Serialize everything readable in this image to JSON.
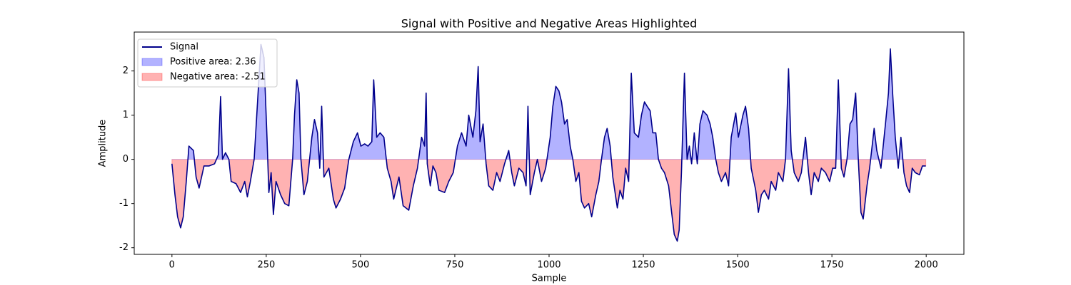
{
  "chart_data": {
    "type": "line",
    "title": "Signal with Positive and Negative Areas Highlighted",
    "x_label": "Sample",
    "y_label": "Amplitude",
    "xlim": [
      -100,
      2100
    ],
    "ylim": [
      -2.15,
      2.88
    ],
    "xticks": [
      0,
      250,
      500,
      750,
      1000,
      1250,
      1500,
      1750,
      2000
    ],
    "yticks": [
      -2,
      -1,
      0,
      1,
      2
    ],
    "legend": "upper left",
    "series": [
      {
        "name": "Signal",
        "color": "#00008b",
        "x": [
          0,
          8,
          15,
          23,
          30,
          38,
          45,
          57,
          64,
          72,
          85,
          98,
          113,
          123,
          129,
          134,
          142,
          151,
          157,
          170,
          182,
          193,
          200,
          208,
          218,
          227,
          236,
          244,
          252,
          257,
          263,
          269,
          276,
          288,
          299,
          310,
          320,
          325,
          331,
          337,
          342,
          350,
          359,
          371,
          378,
          386,
          392,
          397,
          403,
          416,
          428,
          435,
          447,
          458,
          469,
          481,
          492,
          501,
          511,
          520,
          530,
          535,
          543,
          552,
          562,
          571,
          581,
          588,
          602,
          613,
          628,
          640,
          651,
          662,
          670,
          674,
          677,
          685,
          692,
          700,
          708,
          723,
          734,
          746,
          757,
          768,
          780,
          787,
          798,
          806,
          812,
          817,
          825,
          833,
          840,
          851,
          861,
          870,
          882,
          893,
          901,
          908,
          920,
          931,
          939,
          944,
          950,
          961,
          969,
          980,
          991,
          1003,
          1010,
          1018,
          1026,
          1033,
          1041,
          1048,
          1056,
          1063,
          1071,
          1079,
          1086,
          1094,
          1105,
          1113,
          1124,
          1132,
          1139,
          1147,
          1154,
          1162,
          1169,
          1181,
          1188,
          1196,
          1203,
          1211,
          1218,
          1226,
          1237,
          1245,
          1253,
          1260,
          1268,
          1275,
          1283,
          1290,
          1298,
          1306,
          1317,
          1325,
          1332,
          1340,
          1345,
          1351,
          1359,
          1366,
          1372,
          1378,
          1385,
          1393,
          1400,
          1408,
          1419,
          1427,
          1434,
          1442,
          1449,
          1457,
          1468,
          1476,
          1483,
          1495,
          1502,
          1514,
          1521,
          1529,
          1536,
          1548,
          1555,
          1563,
          1571,
          1582,
          1589,
          1601,
          1608,
          1620,
          1627,
          1635,
          1642,
          1650,
          1661,
          1669,
          1680,
          1688,
          1695,
          1703,
          1714,
          1722,
          1733,
          1744,
          1752,
          1760,
          1767,
          1775,
          1782,
          1790,
          1798,
          1805,
          1813,
          1820,
          1827,
          1833,
          1843,
          1850,
          1862,
          1869,
          1880,
          1892,
          1900,
          1905,
          1911,
          1918,
          1926,
          1933,
          1941,
          1948,
          1956,
          1963,
          1971,
          1982,
          1990,
          1999
        ],
        "values": [
          -0.1,
          -0.8,
          -1.3,
          -1.55,
          -1.3,
          -0.5,
          0.3,
          0.2,
          -0.4,
          -0.65,
          -0.15,
          -0.15,
          -0.1,
          0.1,
          1.42,
          0.0,
          0.15,
          0.0,
          -0.5,
          -0.55,
          -0.75,
          -0.5,
          -0.85,
          -0.5,
          0.0,
          1.3,
          2.6,
          2.3,
          0.5,
          -0.75,
          -0.3,
          -1.25,
          -0.5,
          -0.8,
          -1.0,
          -1.05,
          0.0,
          1.0,
          1.8,
          1.5,
          0.0,
          -0.8,
          -0.5,
          0.5,
          0.9,
          0.6,
          -0.2,
          1.2,
          -0.4,
          -0.2,
          -0.9,
          -1.1,
          -0.9,
          -0.65,
          0.0,
          0.4,
          0.6,
          0.3,
          0.35,
          0.3,
          0.4,
          1.8,
          0.5,
          0.6,
          0.5,
          -0.2,
          -0.5,
          -0.9,
          -0.4,
          -1.05,
          -1.15,
          -0.6,
          -0.2,
          0.5,
          0.3,
          1.5,
          -0.1,
          -0.6,
          -0.15,
          -0.3,
          -0.7,
          -0.75,
          -0.5,
          -0.3,
          0.3,
          0.6,
          0.3,
          1.0,
          0.5,
          1.1,
          2.1,
          0.4,
          0.8,
          -0.1,
          -0.6,
          -0.7,
          -0.3,
          -0.5,
          -0.1,
          0.2,
          -0.3,
          -0.6,
          -0.2,
          -0.3,
          -0.6,
          1.2,
          -0.8,
          -0.3,
          0.0,
          -0.5,
          -0.2,
          0.5,
          1.2,
          1.65,
          1.55,
          1.3,
          0.8,
          0.9,
          0.3,
          0.0,
          -0.5,
          -0.3,
          -0.95,
          -1.1,
          -1.0,
          -1.3,
          -0.8,
          -0.5,
          0.0,
          0.5,
          0.7,
          0.3,
          -0.4,
          -1.1,
          -0.7,
          -0.9,
          -0.2,
          -0.5,
          1.95,
          0.6,
          0.5,
          1.0,
          1.3,
          1.2,
          1.1,
          0.6,
          0.6,
          0.0,
          -0.2,
          -0.3,
          -0.6,
          -1.2,
          -1.7,
          -1.85,
          -1.6,
          -0.3,
          1.95,
          0.0,
          0.3,
          -0.1,
          0.6,
          -0.1,
          0.8,
          1.1,
          1.0,
          0.8,
          0.5,
          0.0,
          -0.3,
          -0.5,
          -0.3,
          -0.6,
          0.5,
          1.05,
          0.5,
          1.0,
          1.2,
          0.7,
          -0.2,
          -0.7,
          -1.2,
          -0.8,
          -0.7,
          -0.9,
          -0.5,
          -0.7,
          -0.3,
          -0.5,
          0.0,
          2.05,
          0.2,
          -0.3,
          -0.5,
          -0.3,
          0.5,
          -0.3,
          -0.8,
          -0.3,
          -0.5,
          -0.2,
          -0.3,
          -0.5,
          -0.2,
          -0.2,
          1.8,
          -0.2,
          -0.4,
          0.0,
          0.8,
          0.9,
          1.5,
          0.0,
          -1.2,
          -1.35,
          -0.6,
          -0.2,
          0.7,
          0.2,
          -0.2,
          0.8,
          1.5,
          2.5,
          1.5,
          0.5,
          -0.2,
          0.5,
          -0.3,
          -0.6,
          -0.75,
          -0.2,
          -0.3,
          -0.35,
          -0.15,
          -0.15
        ]
      }
    ],
    "fills": [
      {
        "name": "Positive area: 2.36",
        "color": "#0000ff",
        "side": "positive"
      },
      {
        "name": "Negative area: -2.51",
        "color": "#ff0000",
        "side": "negative"
      }
    ]
  }
}
